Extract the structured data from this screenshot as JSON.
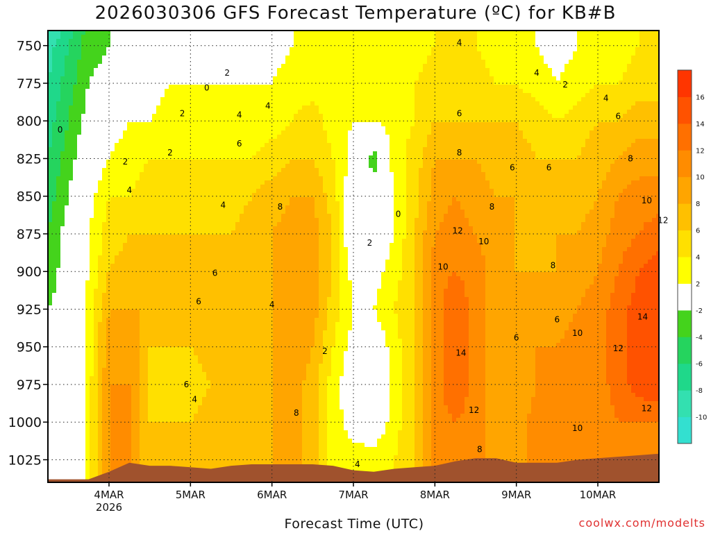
{
  "chart_data": {
    "type": "heatmap",
    "title": "2026030306 GFS Forecast Temperature (ºC) for KB#B",
    "xlabel": "Forecast Time (UTC)",
    "credit": "coolwx.com/modelts",
    "x_ticks": [
      "4MAR",
      "5MAR",
      "6MAR",
      "7MAR",
      "8MAR",
      "9MAR",
      "10MAR"
    ],
    "x_year_label": "2026",
    "x_range_days": [
      3.25,
      10.75
    ],
    "y_ticks": [
      750,
      775,
      800,
      825,
      850,
      875,
      900,
      925,
      950,
      975,
      1000,
      1025
    ],
    "y_range": [
      740,
      1040
    ],
    "y_unit": "hPa",
    "grid": true,
    "colorbar": {
      "placement": "right",
      "boundaries": [
        -12,
        -10,
        -8,
        -6,
        -4,
        -2,
        2,
        4,
        6,
        8,
        10,
        12,
        14,
        16,
        18
      ],
      "colors": [
        "#33e0d0",
        "#33e0b0",
        "#1fd88a",
        "#25d45e",
        "#44d31c",
        "#ffffff",
        "#ffff00",
        "#ffe000",
        "#ffc000",
        "#ffa500",
        "#ff8c00",
        "#ff7000",
        "#ff5200",
        "#ff3500"
      ],
      "tick_labels": [
        "-10",
        "-8",
        "-6",
        "-4",
        "-2",
        "2",
        "4",
        "6",
        "8",
        "10",
        "12",
        "14",
        "16"
      ]
    },
    "column_times_days": [
      3.25,
      3.5,
      3.75,
      4.0,
      4.25,
      4.5,
      4.75,
      5.0,
      5.25,
      5.5,
      5.75,
      6.0,
      6.25,
      6.5,
      6.75,
      7.0,
      7.25,
      7.5,
      7.75,
      8.0,
      8.25,
      8.5,
      8.75,
      9.0,
      9.25,
      9.5,
      9.75,
      10.0,
      10.25,
      10.5,
      10.75
    ],
    "pressure_levels": [
      740,
      750,
      775,
      800,
      825,
      850,
      875,
      900,
      925,
      950,
      975,
      1000,
      1025,
      1040
    ],
    "temperature_c": [
      [
        -10,
        -9,
        -8,
        -7,
        -6,
        -5,
        -4,
        -3,
        -2,
        -2,
        -2,
        -2,
        -2,
        -2
      ],
      [
        -7,
        -6,
        -5,
        -4,
        -3,
        -2,
        -1,
        -1,
        -1,
        -1,
        -1,
        -1,
        -1,
        -1
      ],
      [
        -3,
        -3,
        -2,
        -1,
        0,
        1,
        2,
        2,
        3,
        3,
        3,
        3,
        3,
        3
      ],
      [
        -2,
        -2,
        -1,
        1,
        2,
        4,
        5,
        6,
        8,
        9,
        10,
        10,
        10,
        10
      ],
      [
        -1,
        -1,
        0,
        2,
        3,
        4,
        6,
        7,
        8,
        10,
        10,
        10,
        10,
        10
      ],
      [
        0,
        0,
        1,
        2,
        4,
        5,
        6,
        7,
        8,
        6,
        5,
        6,
        6,
        6
      ],
      [
        1,
        1,
        2,
        3,
        4,
        5,
        6,
        7,
        7,
        6,
        5,
        6,
        7,
        7
      ],
      [
        1,
        1,
        2,
        3,
        4,
        5,
        6,
        7,
        7,
        6,
        5,
        6,
        7,
        7
      ],
      [
        1,
        1,
        2,
        3,
        4,
        5,
        6,
        7,
        7,
        7,
        6,
        7,
        7,
        7
      ],
      [
        1,
        1,
        2,
        3,
        4,
        5,
        6,
        7,
        7,
        7,
        6,
        7,
        7,
        7
      ],
      [
        1,
        1,
        2,
        3,
        4,
        6,
        7,
        7,
        7,
        7,
        7,
        7,
        7,
        7
      ],
      [
        1,
        1,
        2,
        3,
        5,
        7,
        8,
        8,
        8,
        8,
        8,
        8,
        8,
        8
      ],
      [
        2,
        2,
        3,
        4,
        6,
        8,
        9,
        10,
        10,
        10,
        9,
        9,
        9,
        9
      ],
      [
        2,
        2,
        3,
        5,
        6,
        8,
        9,
        9,
        9,
        8,
        7,
        7,
        7,
        7
      ],
      [
        2,
        2,
        3,
        3,
        4,
        5,
        6,
        6,
        5,
        4,
        3,
        3,
        3,
        3
      ],
      [
        3,
        3,
        3,
        2,
        1,
        0,
        -1,
        1,
        2,
        1,
        0,
        1,
        3,
        3
      ],
      [
        3,
        3,
        3,
        2,
        -3,
        -1,
        0,
        1,
        2,
        0,
        -1,
        0,
        3,
        3
      ],
      [
        3,
        3,
        3,
        3,
        3,
        2,
        2,
        3,
        4,
        3,
        3,
        3,
        4,
        4
      ],
      [
        3,
        3,
        4,
        4,
        5,
        5,
        6,
        6,
        6,
        6,
        6,
        6,
        6,
        6
      ],
      [
        4,
        4,
        5,
        6,
        8,
        9,
        10,
        11,
        11,
        11,
        11,
        11,
        11,
        11
      ],
      [
        4,
        4,
        5,
        6,
        8,
        10,
        11,
        12,
        14,
        14,
        14,
        12,
        11,
        11
      ],
      [
        4,
        4,
        5,
        6,
        8,
        9,
        10,
        11,
        11,
        11,
        11,
        11,
        11,
        11
      ],
      [
        3,
        3,
        4,
        6,
        7,
        8,
        9,
        9,
        9,
        9,
        9,
        9,
        9,
        9
      ],
      [
        3,
        3,
        4,
        6,
        7,
        8,
        8,
        8,
        8,
        8,
        8,
        9,
        9,
        9
      ],
      [
        2,
        2,
        3,
        5,
        6,
        7,
        7,
        8,
        9,
        10,
        10,
        11,
        11,
        11
      ],
      [
        1,
        1,
        2,
        4,
        6,
        7,
        8,
        8,
        9,
        10,
        11,
        11,
        11,
        11
      ],
      [
        2,
        2,
        3,
        5,
        6,
        7,
        8,
        9,
        10,
        11,
        11,
        11,
        11,
        11
      ],
      [
        3,
        3,
        4,
        6,
        7,
        8,
        9,
        10,
        11,
        11,
        11,
        11,
        11,
        11
      ],
      [
        3,
        3,
        4,
        6,
        8,
        10,
        11,
        12,
        13,
        13,
        13,
        12,
        11,
        11
      ],
      [
        4,
        4,
        5,
        7,
        9,
        11,
        12,
        14,
        15,
        15,
        15,
        12,
        11,
        11
      ],
      [
        4,
        4,
        5,
        7,
        9,
        11,
        13,
        15,
        16,
        16,
        16,
        12,
        11,
        11
      ]
    ],
    "surface_pressure": [
      1038,
      1038,
      1038,
      1033,
      1027,
      1029,
      1029,
      1030,
      1031,
      1029,
      1028,
      1028,
      1028,
      1028,
      1029,
      1032,
      1033,
      1031,
      1030,
      1029,
      1026,
      1024,
      1024,
      1027,
      1027,
      1027,
      1025,
      1024,
      1023,
      1022,
      1021
    ],
    "contour_labels": [
      {
        "day": 5.2,
        "p": 778,
        "text": "0"
      },
      {
        "day": 3.4,
        "p": 806,
        "text": "0"
      },
      {
        "day": 7.55,
        "p": 862,
        "text": "0"
      },
      {
        "day": 4.2,
        "p": 827,
        "text": "2"
      },
      {
        "day": 4.75,
        "p": 821,
        "text": "2"
      },
      {
        "day": 4.9,
        "p": 795,
        "text": "2"
      },
      {
        "day": 5.45,
        "p": 768,
        "text": "2"
      },
      {
        "day": 7.2,
        "p": 881,
        "text": "2"
      },
      {
        "day": 6.65,
        "p": 953,
        "text": "2"
      },
      {
        "day": 9.6,
        "p": 776,
        "text": "2"
      },
      {
        "day": 4.25,
        "p": 846,
        "text": "4"
      },
      {
        "day": 5.4,
        "p": 856,
        "text": "4"
      },
      {
        "day": 5.6,
        "p": 796,
        "text": "4"
      },
      {
        "day": 5.95,
        "p": 790,
        "text": "4"
      },
      {
        "day": 6.0,
        "p": 922,
        "text": "4"
      },
      {
        "day": 5.05,
        "p": 985,
        "text": "4"
      },
      {
        "day": 7.05,
        "p": 1028,
        "text": "4"
      },
      {
        "day": 8.3,
        "p": 748,
        "text": "4"
      },
      {
        "day": 9.25,
        "p": 768,
        "text": "4"
      },
      {
        "day": 10.1,
        "p": 785,
        "text": "4"
      },
      {
        "day": 5.6,
        "p": 815,
        "text": "6"
      },
      {
        "day": 5.3,
        "p": 901,
        "text": "6"
      },
      {
        "day": 5.1,
        "p": 920,
        "text": "6"
      },
      {
        "day": 4.95,
        "p": 975,
        "text": "6"
      },
      {
        "day": 8.3,
        "p": 795,
        "text": "6"
      },
      {
        "day": 8.95,
        "p": 831,
        "text": "6"
      },
      {
        "day": 9.4,
        "p": 831,
        "text": "6"
      },
      {
        "day": 9.5,
        "p": 932,
        "text": "6"
      },
      {
        "day": 9.0,
        "p": 944,
        "text": "6"
      },
      {
        "day": 10.25,
        "p": 797,
        "text": "6"
      },
      {
        "day": 6.1,
        "p": 857,
        "text": "8"
      },
      {
        "day": 6.3,
        "p": 994,
        "text": "8"
      },
      {
        "day": 8.3,
        "p": 821,
        "text": "8"
      },
      {
        "day": 8.7,
        "p": 857,
        "text": "8"
      },
      {
        "day": 9.45,
        "p": 896,
        "text": "8"
      },
      {
        "day": 8.55,
        "p": 1018,
        "text": "8"
      },
      {
        "day": 10.4,
        "p": 825,
        "text": "8"
      },
      {
        "day": 8.1,
        "p": 897,
        "text": "10"
      },
      {
        "day": 8.6,
        "p": 880,
        "text": "10"
      },
      {
        "day": 9.75,
        "p": 941,
        "text": "10"
      },
      {
        "day": 9.75,
        "p": 1004,
        "text": "10"
      },
      {
        "day": 10.6,
        "p": 853,
        "text": "10"
      },
      {
        "day": 8.28,
        "p": 873,
        "text": "12"
      },
      {
        "day": 8.48,
        "p": 992,
        "text": "12"
      },
      {
        "day": 10.25,
        "p": 951,
        "text": "12"
      },
      {
        "day": 10.6,
        "p": 991,
        "text": "12"
      },
      {
        "day": 10.8,
        "p": 866,
        "text": "12"
      },
      {
        "day": 8.32,
        "p": 954,
        "text": "14"
      },
      {
        "day": 10.55,
        "p": 930,
        "text": "14"
      }
    ]
  }
}
